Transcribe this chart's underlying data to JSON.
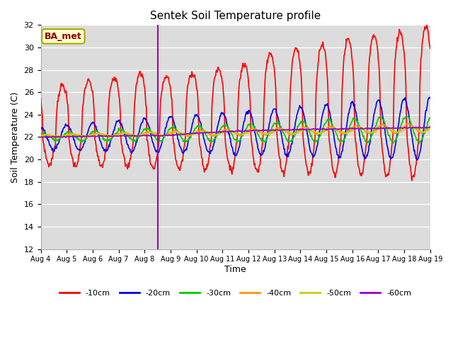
{
  "title": "Sentek Soil Temperature profile",
  "xlabel": "Time",
  "ylabel": "Soil Temperature (C)",
  "ylim": [
    12,
    32
  ],
  "yticks": [
    12,
    14,
    16,
    18,
    20,
    22,
    24,
    26,
    28,
    30,
    32
  ],
  "axes_bg": "#dcdcdc",
  "annotation_text": "BA_met",
  "annotation_bg": "#ffffcc",
  "annotation_edge": "#aaaa00",
  "annotation_text_color": "#880000",
  "series_colors": [
    "#ff0000",
    "#0000ee",
    "#00cc00",
    "#ff9900",
    "#cccc00",
    "#9900cc"
  ],
  "series_labels": [
    "-10cm",
    "-20cm",
    "-30cm",
    "-40cm",
    "-50cm",
    "-60cm"
  ],
  "start_day": 4,
  "n_days": 15,
  "vertical_line_x": 4.5,
  "vertical_line_color": "#aa00aa"
}
